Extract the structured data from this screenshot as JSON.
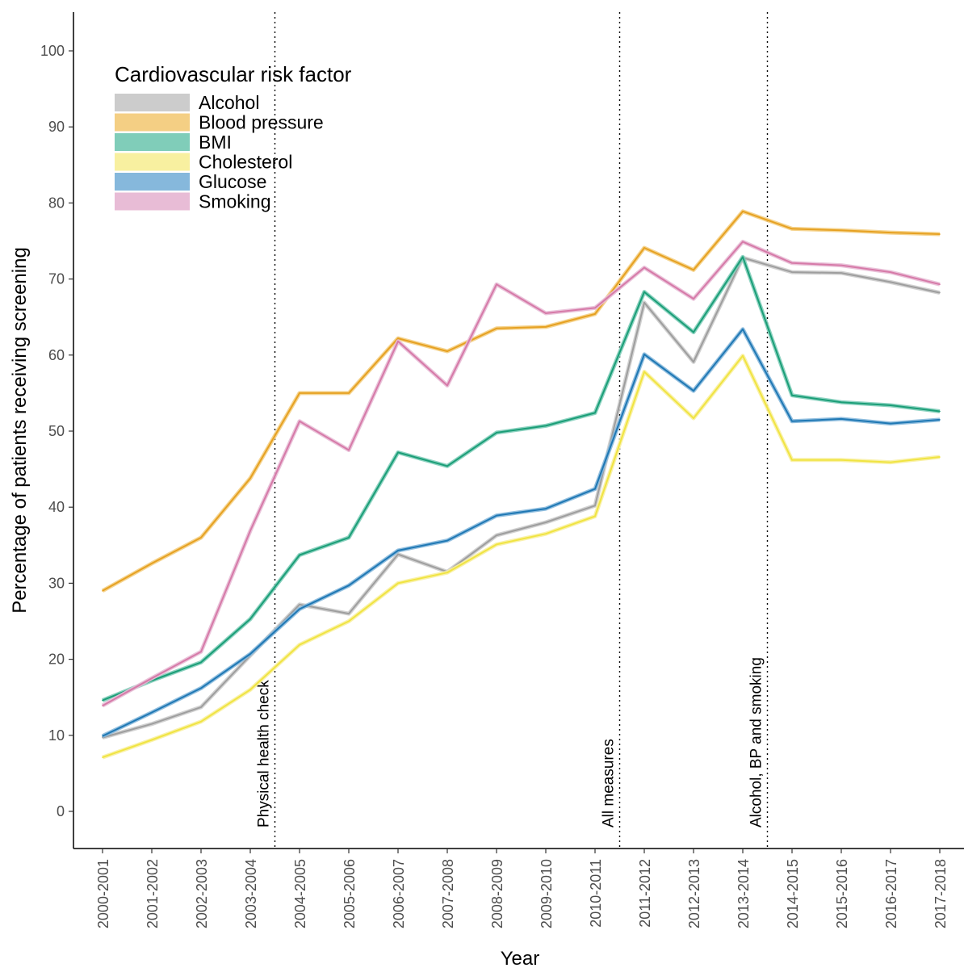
{
  "chart_data": {
    "type": "line",
    "xlabel": "Year",
    "ylabel": "Percentage of patients receiving screening",
    "ylim": [
      -5,
      105
    ],
    "y_ticks": [
      0,
      10,
      20,
      30,
      40,
      50,
      60,
      70,
      80,
      90,
      100
    ],
    "grid": false,
    "legend": {
      "title": "Cardiovascular risk factor",
      "placement": "top-left"
    },
    "categories": [
      "2000-2001",
      "2001-2002",
      "2002-2003",
      "2003-2004",
      "2004-2005",
      "2005-2006",
      "2006-2007",
      "2007-2008",
      "2008-2009",
      "2009-2010",
      "2010-2011",
      "2011-2012",
      "2012-2013",
      "2013-2014",
      "2014-2015",
      "2015-2016",
      "2016-2017",
      "2017-2018"
    ],
    "series": [
      {
        "name": "Alcohol",
        "color": "#9e9e9e",
        "legend_color": "#cccccc",
        "values": [
          9.7,
          11.5,
          13.7,
          20.5,
          27.2,
          26.0,
          33.8,
          31.5,
          36.3,
          38.0,
          40.2,
          66.9,
          59.1,
          72.8,
          70.9,
          70.8,
          69.6,
          68.2
        ]
      },
      {
        "name": "Blood pressure",
        "color": "#e6a122",
        "legend_color": "#f4cf84",
        "values": [
          29.0,
          32.6,
          36.0,
          43.8,
          55.0,
          55.0,
          62.2,
          60.5,
          63.5,
          63.7,
          65.4,
          74.1,
          71.2,
          78.9,
          76.6,
          76.4,
          76.1,
          75.9
        ]
      },
      {
        "name": "BMI",
        "color": "#1b9e77",
        "legend_color": "#80cdb9",
        "values": [
          14.6,
          17.2,
          19.6,
          25.3,
          33.7,
          36.0,
          47.2,
          45.4,
          49.8,
          50.7,
          52.4,
          68.3,
          63.0,
          72.9,
          54.7,
          53.8,
          53.4,
          52.6
        ]
      },
      {
        "name": "Cholesterol",
        "color": "#f0e442",
        "legend_color": "#f8f0a0",
        "values": [
          7.1,
          9.4,
          11.8,
          16.0,
          21.9,
          25.0,
          30.0,
          31.4,
          35.1,
          36.5,
          38.8,
          57.8,
          51.7,
          59.9,
          46.2,
          46.2,
          45.9,
          46.6
        ]
      },
      {
        "name": "Glucose",
        "color": "#1f78b4",
        "legend_color": "#86b8dc",
        "values": [
          9.9,
          13.0,
          16.2,
          20.7,
          26.6,
          29.7,
          34.3,
          35.6,
          38.9,
          39.8,
          42.4,
          60.1,
          55.3,
          63.4,
          51.3,
          51.6,
          51.0,
          51.5
        ]
      },
      {
        "name": "Smoking",
        "color": "#d67aa8",
        "legend_color": "#e8bcd6",
        "values": [
          13.9,
          17.5,
          21.0,
          36.9,
          51.3,
          47.5,
          61.8,
          56.0,
          69.3,
          65.5,
          66.2,
          71.5,
          67.4,
          74.9,
          72.1,
          71.8,
          70.9,
          69.3
        ]
      }
    ],
    "vlines": [
      {
        "label": "Physical health check",
        "after_category": "2003-2004"
      },
      {
        "label": "All measures",
        "after_category": "2010-2011"
      },
      {
        "label": "Alcohol, BP and smoking",
        "after_category": "2013-2014"
      }
    ]
  }
}
